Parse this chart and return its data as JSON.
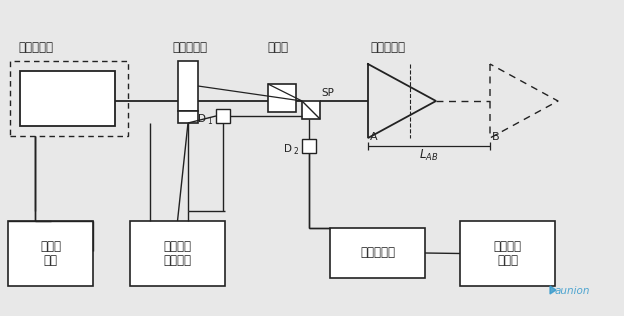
{
  "bg_color": "#e8e8e8",
  "line_color": "#222222",
  "labels": {
    "laser": "氮氖激光器",
    "aom": "声光调制器",
    "expander": "扩束器",
    "prism": "四面体棱镜",
    "stabilizer": "稳频及\n温控",
    "aom_driver": "声光调制\n器驱动器",
    "mixer": "混频及比相",
    "signal": "信号处理\n及显示",
    "sp": "SP",
    "d1": "D",
    "d1sub": "1",
    "d2": "D",
    "d2sub": "2",
    "A": "A",
    "B": "B",
    "LAB": "L"
  },
  "fig_width": 6.24,
  "fig_height": 3.16,
  "dpi": 100
}
